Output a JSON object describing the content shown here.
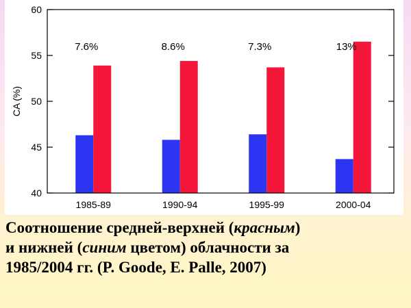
{
  "chart_data": {
    "type": "bar",
    "categories": [
      "1985-89",
      "1990-94",
      "1995-99",
      "2000-04"
    ],
    "series": [
      {
        "values": [
          46.3,
          45.8,
          46.4,
          43.7
        ],
        "color": "#2b35f2"
      },
      {
        "values": [
          53.9,
          54.4,
          53.7,
          56.5
        ],
        "color": "#f5173a"
      }
    ],
    "data_labels": [
      "7.6%",
      "8.6%",
      "7.3%",
      "13%"
    ],
    "xlabel": "",
    "ylabel": "CA (%)",
    "ylim": [
      40,
      60
    ],
    "yticks": [
      40,
      45,
      50,
      55,
      60
    ],
    "grid": false
  },
  "caption": {
    "line1_a": "Соотношение средней-верхней (",
    "line1_italic": "красным",
    "line1_b": ")",
    "line2_a": "и нижней (",
    "line2_italic": "синим",
    "line2_b": " цветом) облачности за",
    "line3": "1985/2004 гг. (P. Goode, E. Palle, 2007)"
  }
}
